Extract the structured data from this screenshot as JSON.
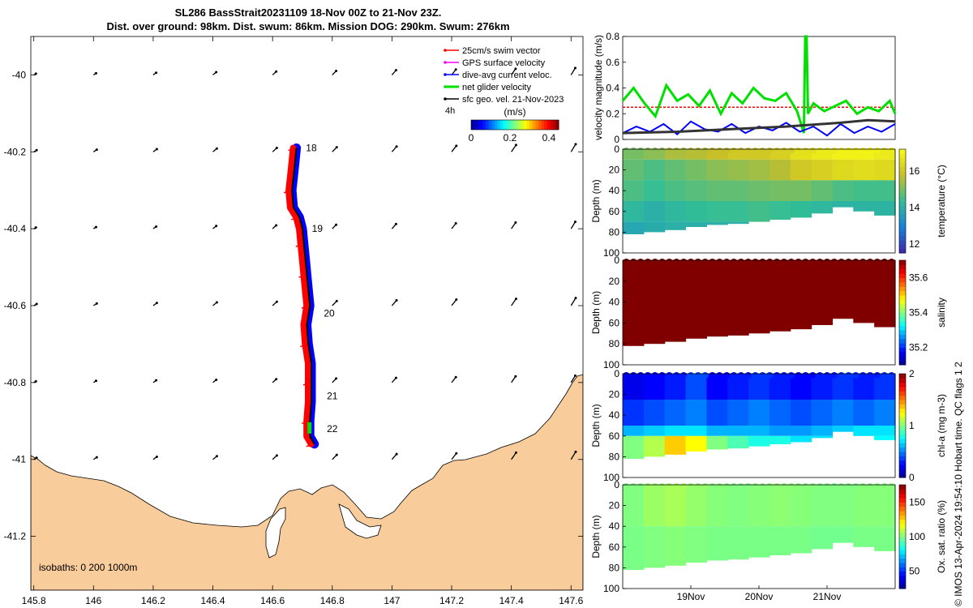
{
  "title": {
    "line1": "SL286 BassStrait20231109 18-Nov 00Z to 21-Nov 23Z.",
    "line2": "Dist. over ground: 98km. Dist. swum: 86km. Mission DOG: 290km. Swum: 276km"
  },
  "credit": "© IMOS 13-Apr-2024 19:54:10 Hobart time. QC flags 1  2",
  "colors": {
    "land": "#f9cc9c",
    "swim": "#ff0000",
    "gps": "#ff00ff",
    "dac": "#0000ff",
    "net": "#00e000",
    "sfc": "#000000"
  },
  "chart_data": [
    {
      "type": "map",
      "x_ticks": [
        "145.8",
        "146",
        "146.2",
        "146.4",
        "146.6",
        "146.8",
        "147",
        "147.2",
        "147.4",
        "147.6"
      ],
      "x_values": [
        145.8,
        146,
        146.2,
        146.4,
        146.6,
        146.8,
        147,
        147.2,
        147.4,
        147.6
      ],
      "y_ticks": [
        "-40",
        "-40.2",
        "-40.4",
        "-40.6",
        "-40.8",
        "-41",
        "-41.2"
      ],
      "y_values": [
        -40,
        -40.2,
        -40.4,
        -40.6,
        -40.8,
        -41,
        -41.2
      ],
      "xlim": [
        145.79,
        147.64
      ],
      "ylim": [
        -41.34,
        -39.9
      ],
      "legend": {
        "items": [
          {
            "label": "25cm/s swim vector",
            "color": "#ff0000"
          },
          {
            "label": "GPS surface velocity",
            "color": "#ff00ff"
          },
          {
            "label": "dive-avg current veloc.",
            "color": "#0000ff"
          },
          {
            "label": "net glider velocity",
            "color": "#00e000"
          },
          {
            "label": "sfc geo. vel. 21-Nov-2023",
            "color": "#000000"
          }
        ],
        "interval": "4h",
        "colorbar_label": "(m/s)",
        "colorbar_ticks": [
          "0",
          "0.2",
          "0.4"
        ],
        "colorbar_values": [
          0,
          0.2,
          0.4
        ],
        "colorbar_range": [
          0,
          0.45
        ]
      },
      "day_labels": [
        {
          "text": "18",
          "lon": 146.69,
          "lat": -40.19
        },
        {
          "text": "19",
          "lon": 146.71,
          "lat": -40.4
        },
        {
          "text": "20",
          "lon": 146.75,
          "lat": -40.62
        },
        {
          "text": "21",
          "lon": 146.76,
          "lat": -40.835
        },
        {
          "text": "22",
          "lon": 146.76,
          "lat": -40.92
        }
      ],
      "track": [
        [
          146.68,
          -40.19
        ],
        [
          146.672,
          -40.25
        ],
        [
          146.665,
          -40.3
        ],
        [
          146.67,
          -40.345
        ],
        [
          146.69,
          -40.37
        ],
        [
          146.7,
          -40.4
        ],
        [
          146.705,
          -40.44
        ],
        [
          146.71,
          -40.48
        ],
        [
          146.715,
          -40.52
        ],
        [
          146.72,
          -40.56
        ],
        [
          146.725,
          -40.6
        ],
        [
          146.715,
          -40.65
        ],
        [
          146.72,
          -40.7
        ],
        [
          146.73,
          -40.75
        ],
        [
          146.73,
          -40.8
        ],
        [
          146.73,
          -40.85
        ],
        [
          146.725,
          -40.9
        ],
        [
          146.725,
          -40.94
        ],
        [
          146.74,
          -40.96
        ]
      ],
      "isobaths_label": "isobaths: 0   200  1000m"
    },
    {
      "type": "line",
      "ylabel": "velocity magnitude (m/s)",
      "ylim": [
        0,
        0.8
      ],
      "y_ticks": [
        "0",
        "0.2",
        "0.4",
        "0.6",
        "0.8"
      ],
      "series": [
        {
          "name": "net glider velocity",
          "color": "#00e000",
          "x": [
            0,
            0.04,
            0.08,
            0.12,
            0.16,
            0.2,
            0.24,
            0.28,
            0.32,
            0.36,
            0.4,
            0.44,
            0.48,
            0.52,
            0.56,
            0.6,
            0.64,
            0.665,
            0.67,
            0.675,
            0.68,
            0.7,
            0.74,
            0.78,
            0.82,
            0.86,
            0.9,
            0.94,
            0.98,
            1.0
          ],
          "y": [
            0.3,
            0.4,
            0.28,
            0.18,
            0.42,
            0.3,
            0.35,
            0.26,
            0.38,
            0.2,
            0.36,
            0.28,
            0.4,
            0.32,
            0.3,
            0.36,
            0.22,
            0.05,
            0.8,
            0.8,
            0.2,
            0.28,
            0.22,
            0.26,
            0.3,
            0.2,
            0.25,
            0.22,
            0.3,
            0.2
          ]
        },
        {
          "name": "dive-avg current veloc.",
          "color": "#0000ff",
          "x": [
            0,
            0.05,
            0.1,
            0.15,
            0.2,
            0.25,
            0.3,
            0.35,
            0.4,
            0.45,
            0.5,
            0.55,
            0.6,
            0.65,
            0.7,
            0.75,
            0.8,
            0.85,
            0.9,
            0.95,
            1.0
          ],
          "y": [
            0.05,
            0.1,
            0.06,
            0.12,
            0.04,
            0.14,
            0.08,
            0.06,
            0.12,
            0.05,
            0.1,
            0.07,
            0.13,
            0.06,
            0.1,
            0.03,
            0.12,
            0.05,
            0.1,
            0.06,
            0.12
          ]
        },
        {
          "name": "sfc geo. vel.",
          "color": "#333333",
          "x": [
            0,
            0.2,
            0.4,
            0.6,
            0.8,
            0.9,
            1.0
          ],
          "y": [
            0.05,
            0.06,
            0.08,
            0.1,
            0.13,
            0.15,
            0.14
          ]
        },
        {
          "name": "swim",
          "color": "#ff0000",
          "x": [
            0,
            1.0
          ],
          "y": [
            0.25,
            0.25
          ]
        }
      ]
    },
    {
      "type": "heatmap",
      "variable": "temperature",
      "ylabel": "Depth (m)",
      "cbar_label": "temperature (°C)",
      "cbar_ticks": [
        "12",
        "14",
        "16"
      ],
      "cbar_values": [
        12,
        14,
        16
      ],
      "crange": [
        11.5,
        17.2
      ],
      "y_ticks": [
        "0",
        "20",
        "40",
        "60",
        "80",
        "100"
      ],
      "bottom_depth": [
        82,
        80,
        78,
        75,
        73,
        72,
        70,
        68,
        66,
        62,
        56,
        60,
        64
      ],
      "layers": [
        {
          "depth": [
            0,
            10
          ],
          "values": [
            15,
            15.2,
            15.5,
            15.6,
            15.8,
            16,
            16,
            16.2,
            16.6,
            16.8,
            17,
            17,
            16.8
          ]
        },
        {
          "depth": [
            10,
            30
          ],
          "values": [
            14.8,
            14.6,
            14.8,
            15,
            15.2,
            15.3,
            15.4,
            15.6,
            16,
            16.2,
            16.4,
            16.5,
            16.4
          ]
        },
        {
          "depth": [
            30,
            50
          ],
          "values": [
            14.6,
            14.4,
            14.6,
            14.7,
            14.8,
            14.8,
            14.9,
            15,
            15,
            14.8,
            14.6,
            14.5,
            14.5
          ]
        },
        {
          "depth": [
            50,
            70
          ],
          "values": [
            14.2,
            14,
            14.2,
            14.3,
            14.4,
            14.4,
            14.5,
            14.4,
            14.3,
            14.2,
            14.1,
            14.1,
            14.1
          ]
        },
        {
          "depth": [
            70,
            90
          ],
          "values": [
            13.8,
            13.9,
            14,
            14,
            14,
            14,
            14,
            14,
            14,
            14,
            14,
            14,
            14
          ]
        }
      ]
    },
    {
      "type": "heatmap",
      "variable": "salinity",
      "ylabel": "Depth (m)",
      "cbar_label": "salinity",
      "cbar_ticks": [
        "35.2",
        "35.4",
        "35.6"
      ],
      "cbar_values": [
        35.2,
        35.4,
        35.6
      ],
      "crange": [
        35.1,
        35.7
      ],
      "y_ticks": [
        "0",
        "20",
        "40",
        "60",
        "80",
        "100"
      ],
      "bottom_depth": [
        82,
        80,
        78,
        75,
        73,
        72,
        70,
        68,
        66,
        62,
        56,
        60,
        64
      ],
      "layers": [
        {
          "depth": [
            0,
            90
          ],
          "values": [
            35.7,
            35.7,
            35.7,
            35.7,
            35.7,
            35.7,
            35.7,
            35.7,
            35.7,
            35.7,
            35.7,
            35.7,
            35.7
          ]
        }
      ]
    },
    {
      "type": "heatmap",
      "variable": "chl-a",
      "ylabel": "Depth (m)",
      "cbar_label": "chl-a (mg m-3)",
      "cbar_ticks": [
        "0",
        "1",
        "2"
      ],
      "cbar_values": [
        0,
        1,
        2
      ],
      "crange": [
        0,
        2
      ],
      "y_ticks": [
        "0",
        "20",
        "40",
        "60",
        "80",
        "100"
      ],
      "bottom_depth": [
        82,
        80,
        78,
        75,
        73,
        72,
        70,
        68,
        66,
        62,
        56,
        60,
        64
      ],
      "layers": [
        {
          "depth": [
            0,
            25
          ],
          "values": [
            0.2,
            0.25,
            0.3,
            0.4,
            0.25,
            0.3,
            0.35,
            0.3,
            0.25,
            0.3,
            0.35,
            0.3,
            0.35
          ]
        },
        {
          "depth": [
            25,
            50
          ],
          "values": [
            0.35,
            0.4,
            0.45,
            0.5,
            0.4,
            0.45,
            0.5,
            0.45,
            0.4,
            0.45,
            0.5,
            0.45,
            0.5
          ]
        },
        {
          "depth": [
            50,
            60
          ],
          "values": [
            0.6,
            0.65,
            0.7,
            0.7,
            0.6,
            0.6,
            0.6,
            0.55,
            0.55,
            0.6,
            0.65,
            0.7,
            0.7
          ]
        },
        {
          "depth": [
            60,
            90
          ],
          "values": [
            1.0,
            1.1,
            1.35,
            1.25,
            1.0,
            0.9,
            0.8,
            0.8,
            0.7,
            0.7,
            0.7,
            0.75,
            0.75
          ]
        }
      ]
    },
    {
      "type": "heatmap",
      "variable": "oxygen",
      "ylabel": "Depth (m)",
      "cbar_label": "Ox. sat. ratio (%)",
      "cbar_ticks": [
        "50",
        "100",
        "150"
      ],
      "cbar_values": [
        50,
        100,
        150
      ],
      "crange": [
        25,
        175
      ],
      "y_ticks": [
        "0",
        "20",
        "40",
        "60",
        "80",
        "100"
      ],
      "x_ticks": [
        "19Nov",
        "20Nov",
        "21Nov"
      ],
      "x_fracs": [
        0.25,
        0.5,
        0.75
      ],
      "bottom_depth": [
        82,
        80,
        78,
        75,
        73,
        72,
        70,
        68,
        66,
        62,
        56,
        60,
        64
      ],
      "layers": [
        {
          "depth": [
            0,
            40
          ],
          "values": [
            100,
            104,
            106,
            103,
            101,
            100,
            101,
            102,
            101,
            100,
            100,
            101,
            101
          ]
        },
        {
          "depth": [
            40,
            90
          ],
          "values": [
            99,
            100,
            101,
            100,
            99,
            99,
            99,
            99,
            99,
            98,
            98,
            99,
            99
          ]
        }
      ]
    }
  ]
}
